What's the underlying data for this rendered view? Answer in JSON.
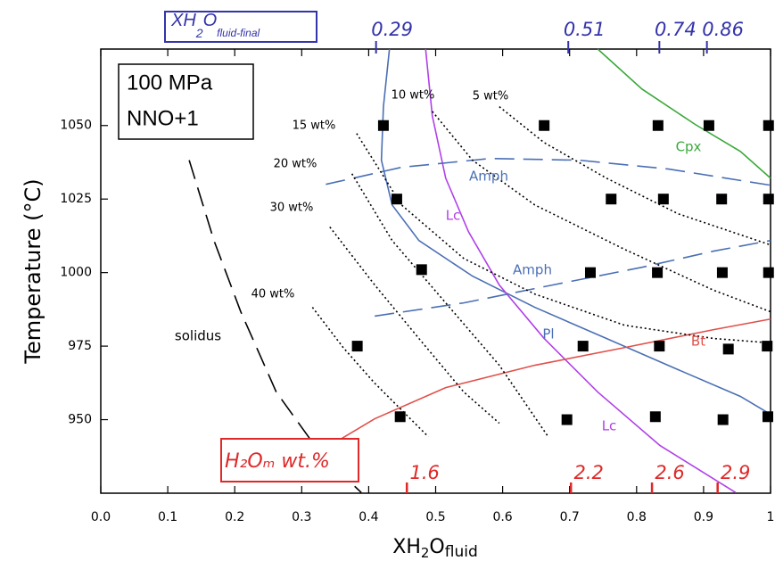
{
  "chart_data": {
    "type": "phase-diagram",
    "y_label": "Temperature (°C)",
    "x_label_parts": [
      "XH",
      "2",
      "O",
      "fluid"
    ],
    "box_lines": [
      "100 MPa",
      "NNO+1"
    ],
    "xlim": [
      0,
      1
    ],
    "ylim": [
      925,
      1076
    ],
    "xticks": [
      {
        "value": 0,
        "label": "0.0"
      },
      0.1,
      0.2,
      0.3,
      0.4,
      0.5,
      0.6,
      0.7,
      0.8,
      0.9,
      1
    ],
    "yticks": [
      950,
      975,
      1000,
      1025,
      1050
    ],
    "top_axis": {
      "title_parts": [
        "XH",
        "2",
        "O",
        "fluid-final"
      ],
      "color": "#3333aa",
      "values": [
        0.29,
        0.51,
        0.74,
        0.86
      ],
      "x": [
        0.411,
        0.698,
        0.834,
        0.905
      ]
    },
    "bottom_axis": {
      "title": "H₂Oₘ wt.%",
      "color": "#e02828",
      "values": [
        1.6,
        2.2,
        2.6,
        2.9
      ],
      "x": [
        0.457,
        0.702,
        0.823,
        0.921
      ]
    },
    "points": {
      "color": "#000000",
      "x": [
        0.422,
        0.662,
        0.832,
        0.908,
        0.997,
        0.442,
        0.762,
        0.84,
        0.927,
        0.997,
        0.479,
        0.731,
        0.831,
        0.928,
        0.997,
        0.383,
        0.72,
        0.834,
        0.937,
        0.995,
        0.447,
        0.696,
        0.828,
        0.929,
        0.996
      ],
      "y": [
        1050,
        1050,
        1050,
        1050,
        1050,
        1025,
        1025,
        1025,
        1025,
        1025,
        1001,
        1000,
        1000,
        1000,
        1000,
        975,
        975,
        975,
        974,
        975,
        951,
        950,
        951,
        950,
        951
      ]
    },
    "curves": [
      {
        "name": "Pl",
        "color": "#4a6fb5",
        "style": "solid",
        "x": [
          0.431,
          0.422,
          0.419,
          0.435,
          0.475,
          0.555,
          0.648,
          0.755,
          0.862,
          0.955,
          1.0
        ],
        "y": [
          1076,
          1056.4,
          1038.2,
          1023,
          1010.9,
          998.8,
          988.2,
          977.6,
          967,
          957.9,
          951.8
        ]
      },
      {
        "name": "Lc",
        "color": "#b040e8",
        "style": "solid",
        "x": [
          0.485,
          0.495,
          0.515,
          0.549,
          0.595,
          0.662,
          0.742,
          0.835,
          0.948
        ],
        "y": [
          1076,
          1053.3,
          1032.1,
          1013.9,
          995.8,
          977.6,
          959.4,
          941.2,
          925.2
        ]
      },
      {
        "name": "Cpx",
        "color": "#3aa83a",
        "style": "solid",
        "x": [
          0.742,
          0.808,
          0.888,
          0.955,
          1.0
        ],
        "y": [
          1076,
          1062.4,
          1050.3,
          1041.2,
          1032.1
        ]
      },
      {
        "name": "Bt",
        "color": "#e0504a",
        "style": "solid",
        "x": [
          0.342,
          0.409,
          0.515,
          0.648,
          0.782,
          0.915,
          1.0
        ],
        "y": [
          941.2,
          950.3,
          960.9,
          968.5,
          974.5,
          980.6,
          984.2
        ]
      },
      {
        "name": "Amph",
        "color": "#4a6fb5",
        "style": "dashed",
        "x": [
          0.336,
          0.449,
          0.582,
          0.715,
          0.848,
          1.0
        ],
        "y": [
          1030,
          1035.8,
          1038.8,
          1038.2,
          1035.2,
          1029.7
        ]
      },
      {
        "name": "Amph",
        "color": "#4a6fb5",
        "style": "dashed",
        "x": [
          0.409,
          0.542,
          0.675,
          0.808,
          0.915,
          1.0
        ],
        "y": [
          985.2,
          989.7,
          995.8,
          1001.8,
          1007.3,
          1010.9
        ]
      },
      {
        "name": "solidus",
        "color": "#000000",
        "style": "dashed",
        "x": [
          0.132,
          0.169,
          0.209,
          0.262,
          0.329,
          0.389
        ],
        "y": [
          1038.2,
          1010.9,
          986.7,
          959.4,
          938.2,
          925.2
        ]
      },
      {
        "name": "5 wt%",
        "color": "#000000",
        "style": "dotted",
        "x": [
          0.595,
          0.662,
          0.755,
          0.862,
          1.0
        ],
        "y": [
          1056.4,
          1044.2,
          1032.1,
          1020,
          1009.4
        ]
      },
      {
        "name": "10 wt%",
        "color": "#000000",
        "style": "dotted",
        "x": [
          0.495,
          0.555,
          0.648,
          0.782,
          0.915,
          1.0
        ],
        "y": [
          1054.8,
          1038.2,
          1023,
          1007.9,
          994,
          986.7
        ]
      },
      {
        "name": "15 wt%",
        "color": "#000000",
        "style": "dotted",
        "x": [
          0.382,
          0.449,
          0.542,
          0.648,
          0.782,
          0.915,
          1.0
        ],
        "y": [
          1047.3,
          1023,
          1004.8,
          992.7,
          982.1,
          977.6,
          976.1
        ]
      },
      {
        "name": "20 wt%",
        "color": "#000000",
        "style": "dotted",
        "x": [
          0.375,
          0.435,
          0.515,
          0.595,
          0.668
        ],
        "y": [
          1033.6,
          1010.9,
          989.7,
          968.5,
          944.2
        ]
      },
      {
        "name": "30 wt%",
        "color": "#000000",
        "style": "dotted",
        "x": [
          0.342,
          0.409,
          0.475,
          0.542,
          0.595
        ],
        "y": [
          1015.5,
          995.8,
          977.6,
          959.4,
          948.8
        ]
      },
      {
        "name": "40 wt%",
        "color": "#000000",
        "style": "dotted",
        "x": [
          0.316,
          0.362,
          0.409,
          0.489
        ],
        "y": [
          988.2,
          974.5,
          962.4,
          944.2
        ]
      }
    ],
    "annotations": [
      "Lc"
    ]
  }
}
